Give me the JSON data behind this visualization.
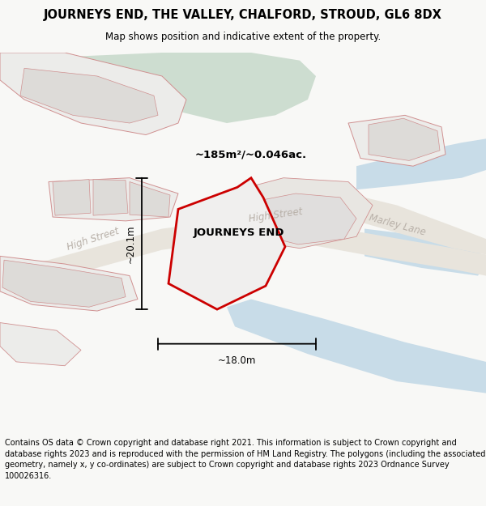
{
  "title": "JOURNEYS END, THE VALLEY, CHALFORD, STROUD, GL6 8DX",
  "subtitle": "Map shows position and indicative extent of the property.",
  "footer": "Contains OS data © Crown copyright and database right 2021. This information is subject to Crown copyright and database rights 2023 and is reproduced with the permission of HM Land Registry. The polygons (including the associated geometry, namely x, y co-ordinates) are subject to Crown copyright and database rights 2023 Ordnance Survey 100026316.",
  "property_label": "JOURNEYS END",
  "area_label": "~185m²/~0.046ac.",
  "dim_width": "~18.0m",
  "dim_height": "~20.1m",
  "bg_color": "#f8f8f6",
  "map_bg": "#ffffff",
  "green_area_color": "#cdddd0",
  "blue_area_color": "#c8dce8",
  "property_outline_color": "#cc0000",
  "property_fill_color": "#f0efee",
  "other_outlines_color": "#d09090",
  "block_fill": "#ececea",
  "road_band_color": "#e8e4dc",
  "road_label_color": "#b8b0a8",
  "title_fontsize": 10.5,
  "subtitle_fontsize": 8.5,
  "footer_fontsize": 7.0
}
